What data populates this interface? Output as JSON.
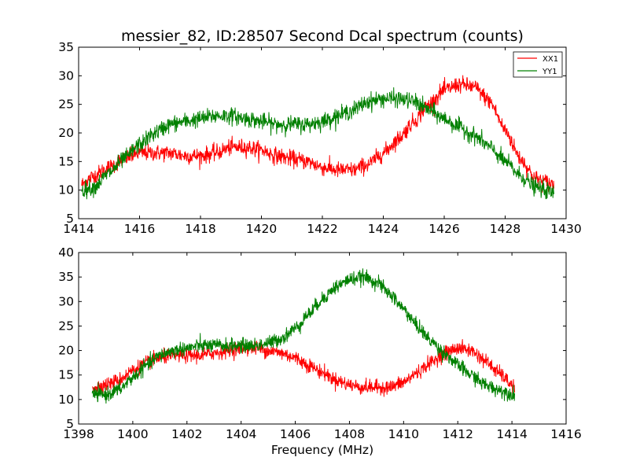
{
  "chart_data": [
    {
      "type": "line",
      "title": "messier_82, ID:28507 Second Dcal spectrum (counts)",
      "xlabel": "",
      "ylabel": "",
      "xlim": [
        1414,
        1430
      ],
      "ylim": [
        5,
        35
      ],
      "xticks": [
        "1414",
        "1416",
        "1418",
        "1420",
        "1422",
        "1424",
        "1426",
        "1428",
        "1430"
      ],
      "yticks": [
        "5",
        "10",
        "15",
        "20",
        "25",
        "30",
        "35"
      ],
      "grid": false,
      "legend_position": "top-right",
      "noise": 1.0,
      "series": [
        {
          "name": "XX1",
          "color": "#ff0000",
          "x": [
            1414.1,
            1414.5,
            1415.0,
            1415.5,
            1416.0,
            1416.5,
            1417.0,
            1417.5,
            1418.0,
            1418.5,
            1419.0,
            1419.5,
            1420.0,
            1420.5,
            1421.0,
            1421.5,
            1422.0,
            1422.5,
            1423.0,
            1423.5,
            1424.0,
            1424.5,
            1425.0,
            1425.5,
            1426.0,
            1426.5,
            1427.0,
            1427.5,
            1428.0,
            1428.5,
            1429.0,
            1429.6
          ],
          "y": [
            11,
            12.5,
            14,
            15.5,
            16.5,
            16.5,
            16.5,
            16,
            16,
            16.5,
            17.5,
            17.5,
            17,
            16,
            15.5,
            15,
            14,
            13.5,
            13.5,
            14.5,
            16.5,
            19,
            22,
            25,
            27.5,
            28.5,
            28,
            25.5,
            20.5,
            15.5,
            12,
            11
          ]
        },
        {
          "name": "YY1",
          "color": "#008000",
          "x": [
            1414.1,
            1414.5,
            1415.0,
            1415.5,
            1416.0,
            1416.5,
            1417.0,
            1417.5,
            1418.0,
            1418.5,
            1419.0,
            1419.5,
            1420.0,
            1420.5,
            1421.0,
            1421.5,
            1422.0,
            1422.5,
            1423.0,
            1423.5,
            1424.0,
            1424.5,
            1425.0,
            1425.5,
            1426.0,
            1426.5,
            1427.0,
            1427.5,
            1428.0,
            1428.5,
            1429.0,
            1429.6
          ],
          "y": [
            10,
            10.5,
            13,
            15.5,
            18,
            20,
            21.5,
            22,
            22.5,
            23,
            23,
            22.5,
            22,
            21.5,
            21.5,
            21.5,
            22,
            23,
            24,
            25.5,
            26,
            26,
            25.5,
            24,
            22.5,
            21,
            19.5,
            17.5,
            15,
            12.5,
            10.5,
            9.5
          ]
        }
      ]
    },
    {
      "type": "line",
      "title": "",
      "xlabel": "Frequency (MHz)",
      "ylabel": "",
      "xlim": [
        1398,
        1416
      ],
      "ylim": [
        5,
        40
      ],
      "xticks": [
        "1398",
        "1400",
        "1402",
        "1404",
        "1406",
        "1408",
        "1410",
        "1412",
        "1414",
        "1416"
      ],
      "yticks": [
        "5",
        "10",
        "15",
        "20",
        "25",
        "30",
        "35",
        "40"
      ],
      "grid": false,
      "noise": 1.0,
      "series": [
        {
          "name": "XX1",
          "color": "#ff0000",
          "x": [
            1398.5,
            1399.0,
            1399.5,
            1400.0,
            1400.5,
            1401.0,
            1401.5,
            1402.0,
            1402.5,
            1403.0,
            1403.5,
            1404.0,
            1404.5,
            1405.0,
            1405.5,
            1406.0,
            1406.5,
            1407.0,
            1407.5,
            1408.0,
            1408.5,
            1409.0,
            1409.5,
            1410.0,
            1410.5,
            1411.0,
            1411.5,
            1412.0,
            1412.5,
            1413.0,
            1413.5,
            1414.1
          ],
          "y": [
            12.5,
            13,
            14,
            16,
            17.5,
            18.5,
            19,
            19,
            19,
            19.5,
            20,
            20.5,
            20.5,
            20,
            19.5,
            18.5,
            17,
            15.5,
            14,
            13,
            12.5,
            12.5,
            12.5,
            13.5,
            15.5,
            17.5,
            19.5,
            20.5,
            20,
            18,
            15.5,
            12.5
          ]
        },
        {
          "name": "YY1",
          "color": "#008000",
          "x": [
            1398.5,
            1399.0,
            1399.5,
            1400.0,
            1400.5,
            1401.0,
            1401.5,
            1402.0,
            1402.5,
            1403.0,
            1403.5,
            1404.0,
            1404.5,
            1405.0,
            1405.5,
            1406.0,
            1406.5,
            1407.0,
            1407.5,
            1408.0,
            1408.5,
            1409.0,
            1409.5,
            1410.0,
            1410.5,
            1411.0,
            1411.5,
            1412.0,
            1412.5,
            1413.0,
            1413.5,
            1414.1
          ],
          "y": [
            11,
            11,
            12,
            14.5,
            17,
            19,
            20,
            20.5,
            21,
            21,
            21,
            21,
            21,
            21.5,
            22.5,
            24.5,
            27.5,
            30.5,
            33,
            34.5,
            35,
            34,
            31.5,
            28.5,
            25,
            22,
            19.5,
            17,
            15,
            13,
            12,
            11
          ]
        }
      ]
    }
  ]
}
